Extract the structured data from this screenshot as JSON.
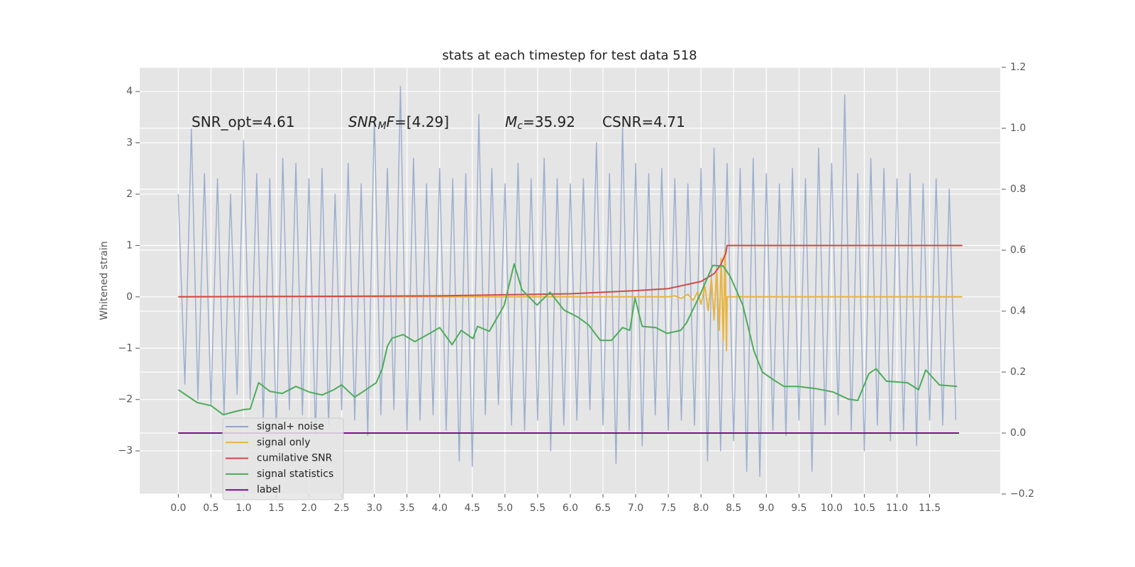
{
  "chart_data": {
    "type": "line",
    "title": "stats at each timestep for test data 518",
    "ylabel": "Whitened strain",
    "annotations": [
      [
        "SNR_opt=4.61"
      ],
      [
        "SNR",
        "M",
        "F",
        "=[4.29]"
      ],
      [
        "M",
        "c",
        "=35.92"
      ],
      [
        "CSNR=4.71"
      ]
    ],
    "xlim": [
      -0.59,
      12.58
    ],
    "ylim": [
      -3.84,
      4.47
    ],
    "y2lim": [
      -0.2,
      1.2
    ],
    "xticks": [
      {
        "value": 0,
        "label": "0.0"
      },
      0.5,
      {
        "value": 1,
        "label": "1.0"
      },
      1.5,
      {
        "value": 2,
        "label": "2.0"
      },
      2.5,
      {
        "value": 3,
        "label": "3.0"
      },
      3.5,
      {
        "value": 4,
        "label": "4.0"
      },
      4.5,
      {
        "value": 5,
        "label": "5.0"
      },
      5.5,
      {
        "value": 6,
        "label": "6.0"
      },
      6.5,
      {
        "value": 7,
        "label": "7.0"
      },
      7.5,
      {
        "value": 8,
        "label": "8.0"
      },
      8.5,
      {
        "value": 9,
        "label": "9.0"
      },
      9.5,
      {
        "value": 10,
        "label": "10.0"
      },
      10.5,
      {
        "value": 11,
        "label": "11.0"
      },
      11.5
    ],
    "yticks": [
      {
        "value": -3,
        "label": "−3"
      },
      {
        "value": -2,
        "label": "−2"
      },
      {
        "value": -1,
        "label": "−1"
      },
      0,
      1,
      2,
      3,
      4
    ],
    "y2ticks": [
      {
        "value": -0.2,
        "label": "−0.2"
      },
      {
        "value": 0,
        "label": "0.0"
      },
      0.2,
      0.4,
      0.6,
      0.8,
      {
        "value": 1,
        "label": "1.0"
      },
      1.2
    ],
    "grid": true,
    "legend": "lower left",
    "series": [
      {
        "name": "signal+ noise",
        "color": "#8fa6cb",
        "x": [
          0.0,
          0.1,
          0.2,
          0.3,
          0.4,
          0.5,
          0.6,
          0.7,
          0.8,
          0.9,
          1.0,
          1.1,
          1.2,
          1.3,
          1.4,
          1.5,
          1.6,
          1.7,
          1.8,
          1.9,
          2.0,
          2.1,
          2.2,
          2.3,
          2.4,
          2.5,
          2.6,
          2.7,
          2.8,
          2.9,
          3.0,
          3.1,
          3.2,
          3.3,
          3.4,
          3.5,
          3.6,
          3.7,
          3.8,
          3.9,
          4.0,
          4.1,
          4.2,
          4.3,
          4.4,
          4.5,
          4.6,
          4.7,
          4.8,
          4.9,
          5.0,
          5.1,
          5.2,
          5.3,
          5.4,
          5.5,
          5.6,
          5.7,
          5.8,
          5.9,
          6.0,
          6.1,
          6.2,
          6.3,
          6.4,
          6.5,
          6.6,
          6.7,
          6.8,
          6.9,
          7.0,
          7.1,
          7.2,
          7.3,
          7.4,
          7.5,
          7.6,
          7.7,
          7.8,
          7.9,
          8.0,
          8.1,
          8.2,
          8.3,
          8.4,
          8.5,
          8.6,
          8.7,
          8.8,
          8.9,
          9.0,
          9.1,
          9.2,
          9.3,
          9.4,
          9.5,
          9.6,
          9.7,
          9.8,
          9.9,
          10.0,
          10.1,
          10.2,
          10.3,
          10.4,
          10.5,
          10.6,
          10.7,
          10.8,
          10.9,
          11.0,
          11.1,
          11.2,
          11.3,
          11.4,
          11.5,
          11.6,
          11.7,
          11.8,
          11.9
        ],
        "values": [
          2.0,
          -1.7,
          3.27,
          -2.0,
          2.4,
          -2.1,
          2.3,
          -2.3,
          2.0,
          -1.9,
          3.05,
          -2.0,
          2.4,
          -2.4,
          2.3,
          -2.6,
          2.7,
          -2.2,
          2.6,
          -2.3,
          2.3,
          -2.7,
          2.5,
          -2.5,
          2.0,
          -2.2,
          2.6,
          -2.4,
          2.2,
          -2.7,
          3.5,
          -2.3,
          2.5,
          -2.2,
          4.1,
          -2.6,
          2.7,
          -2.4,
          2.2,
          -2.3,
          2.5,
          -2.6,
          2.3,
          -3.2,
          2.4,
          -3.3,
          3.55,
          -2.3,
          2.5,
          -2.1,
          2.2,
          -2.5,
          2.6,
          -2.6,
          2.3,
          -2.4,
          2.7,
          -3.0,
          2.3,
          -2.5,
          2.2,
          -2.4,
          2.3,
          -2.2,
          3.0,
          -2.5,
          2.4,
          -3.25,
          3.3,
          -2.6,
          2.6,
          -2.9,
          2.4,
          -2.3,
          2.5,
          -2.6,
          2.3,
          -2.4,
          2.2,
          -2.5,
          2.5,
          -3.2,
          2.9,
          -3.0,
          2.6,
          -2.8,
          2.5,
          -3.4,
          2.7,
          -3.5,
          2.4,
          -2.6,
          2.2,
          -2.7,
          2.5,
          -2.4,
          2.3,
          -3.4,
          2.9,
          -2.5,
          2.6,
          -2.3,
          3.93,
          -2.6,
          2.4,
          -3.0,
          2.7,
          -2.5,
          2.5,
          -2.8,
          2.3,
          -2.6,
          2.4,
          -2.9,
          2.2,
          -2.4,
          2.3,
          -2.5,
          2.1,
          -2.4
        ]
      },
      {
        "name": "signal only",
        "color": "#e8b440",
        "x": [
          0,
          7.5,
          7.6,
          7.7,
          7.8,
          7.88,
          7.95,
          8.0,
          8.06,
          8.11,
          8.16,
          8.2,
          8.24,
          8.28,
          8.31,
          8.34,
          8.37,
          8.39,
          8.4,
          12.0
        ],
        "values": [
          0,
          0,
          0.02,
          -0.03,
          0.05,
          -0.07,
          0.1,
          -0.14,
          0.2,
          -0.27,
          0.35,
          -0.45,
          0.55,
          -0.65,
          0.75,
          -0.85,
          0.9,
          -1.05,
          0,
          0
        ]
      },
      {
        "name": "cumilative SNR",
        "color": "#d0494a",
        "x": [
          0,
          2,
          4,
          5,
          6,
          7,
          7.5,
          8.0,
          8.2,
          8.3,
          8.38,
          8.4,
          12.0
        ],
        "values": [
          0,
          0.01,
          0.02,
          0.04,
          0.06,
          0.12,
          0.16,
          0.3,
          0.45,
          0.62,
          0.85,
          1.0,
          1.0
        ]
      },
      {
        "name": "signal statistics",
        "color": "#4dab5a",
        "axis": "y2",
        "x": [
          0,
          0.29,
          0.5,
          0.69,
          0.86,
          1.0,
          1.1,
          1.23,
          1.4,
          1.59,
          1.8,
          2.0,
          2.2,
          2.38,
          2.5,
          2.7,
          2.9,
          3.03,
          3.12,
          3.2,
          3.27,
          3.44,
          3.62,
          3.79,
          4.0,
          4.19,
          4.33,
          4.51,
          4.58,
          4.76,
          4.93,
          4.99,
          5.14,
          5.26,
          5.49,
          5.69,
          5.9,
          6.12,
          6.28,
          6.46,
          6.63,
          6.8,
          6.91,
          6.99,
          7.1,
          7.31,
          7.48,
          7.69,
          7.78,
          7.99,
          8.18,
          8.34,
          8.45,
          8.64,
          8.81,
          8.94,
          9.1,
          9.27,
          9.48,
          9.75,
          10.02,
          10.26,
          10.4,
          10.57,
          10.68,
          10.84,
          11.16,
          11.33,
          11.44,
          11.65,
          11.92
        ],
        "values": [
          0.142,
          0.1,
          0.09,
          0.06,
          0.07,
          0.077,
          0.079,
          0.165,
          0.137,
          0.13,
          0.153,
          0.135,
          0.125,
          0.142,
          0.158,
          0.118,
          0.146,
          0.165,
          0.21,
          0.285,
          0.311,
          0.323,
          0.3,
          0.32,
          0.346,
          0.29,
          0.337,
          0.31,
          0.35,
          0.334,
          0.397,
          0.42,
          0.555,
          0.47,
          0.42,
          0.462,
          0.404,
          0.38,
          0.355,
          0.304,
          0.304,
          0.346,
          0.337,
          0.443,
          0.35,
          0.346,
          0.327,
          0.337,
          0.362,
          0.455,
          0.55,
          0.548,
          0.513,
          0.42,
          0.27,
          0.2,
          0.176,
          0.153,
          0.153,
          0.146,
          0.135,
          0.111,
          0.107,
          0.195,
          0.211,
          0.17,
          0.165,
          0.142,
          0.207,
          0.158,
          0.153
        ]
      },
      {
        "name": "label",
        "color": "#7b0f8a",
        "axis": "y2",
        "x": [
          0,
          11.95
        ],
        "values": [
          0,
          0
        ]
      }
    ]
  }
}
